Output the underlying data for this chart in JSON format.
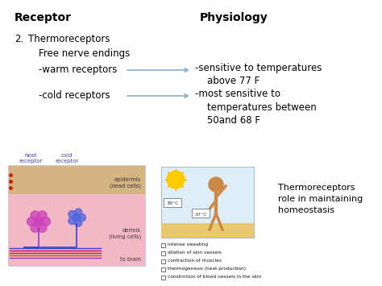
{
  "bg_color": "#ffffff",
  "title_receptor": "Receptor",
  "title_physiology": "Physiology",
  "title_fontsize": 10,
  "title_fontweight": "bold",
  "item_number": "2.",
  "item_main": "Thermoreceptors",
  "item_sub1": "Free nerve endings",
  "item_warm": "-warm receptors",
  "item_cold": "-cold receptors",
  "phys_warm": "-sensitive to temperatures\n    above 77 F",
  "phys_cold": "-most sensitive to\n    temperatures between\n    50and 68 F",
  "arrow_color": "#8aafc8",
  "text_color": "#000000",
  "caption_bottom_right": "Thermoreceptors\nrole in maintaining\nhomeostasis",
  "checklist": [
    "intense sweating",
    "dilation of skin vessels",
    "contraction of muscles",
    "thermogenesis (heat production)",
    "constriction of blood vessels in the skin"
  ],
  "skin_epi_color": "#d4b483",
  "skin_derm_color": "#f2b8c6",
  "skin_outline_color": "#cccccc",
  "heat_receptor_color": "#cc44bb",
  "cold_receptor_color": "#5566dd",
  "nerve_purple": "#9933cc",
  "nerve_blue": "#3344cc",
  "mid_bg_color": "#ddeef8",
  "sun_color": "#ffcc00",
  "person_color": "#cc8844"
}
